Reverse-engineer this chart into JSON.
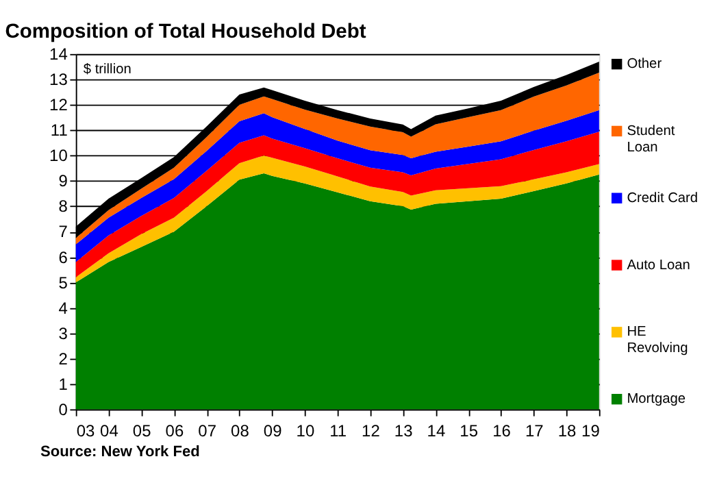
{
  "chart_data": {
    "type": "area",
    "stacked": true,
    "title": "Composition of Total Household Debt",
    "ylabel": "$ trillion",
    "annotations": [
      "Source: New York Fed"
    ],
    "x": [
      2003,
      2004,
      2005,
      2006,
      2007,
      2008,
      2008.75,
      2009,
      2010,
      2011,
      2012,
      2013,
      2013.25,
      2014,
      2015,
      2016,
      2017,
      2018,
      2019
    ],
    "series": [
      {
        "name": "Mortgage",
        "color": "#008000",
        "values": [
          5.0,
          5.8,
          6.4,
          7.0,
          8.0,
          9.05,
          9.3,
          9.2,
          8.9,
          8.55,
          8.2,
          8.0,
          7.87,
          8.1,
          8.2,
          8.3,
          8.6,
          8.9,
          9.25
        ]
      },
      {
        "name": "HE Revolving",
        "color": "#ffc000",
        "values": [
          0.2,
          0.35,
          0.5,
          0.55,
          0.6,
          0.65,
          0.7,
          0.71,
          0.67,
          0.63,
          0.58,
          0.56,
          0.55,
          0.53,
          0.51,
          0.49,
          0.46,
          0.44,
          0.41
        ]
      },
      {
        "name": "Auto Loan",
        "color": "#ff0000",
        "values": [
          0.6,
          0.7,
          0.72,
          0.78,
          0.8,
          0.8,
          0.8,
          0.76,
          0.72,
          0.71,
          0.74,
          0.78,
          0.8,
          0.86,
          0.96,
          1.06,
          1.16,
          1.22,
          1.28
        ]
      },
      {
        "name": "Credit Card",
        "color": "#0000ff",
        "values": [
          0.7,
          0.7,
          0.71,
          0.74,
          0.78,
          0.85,
          0.87,
          0.84,
          0.76,
          0.7,
          0.69,
          0.68,
          0.67,
          0.66,
          0.68,
          0.71,
          0.76,
          0.81,
          0.85
        ]
      },
      {
        "name": "Student Loan",
        "color": "#ff6600",
        "values": [
          0.25,
          0.3,
          0.36,
          0.45,
          0.55,
          0.65,
          0.66,
          0.72,
          0.76,
          0.87,
          0.93,
          0.9,
          0.85,
          1.08,
          1.16,
          1.23,
          1.34,
          1.39,
          1.48
        ]
      },
      {
        "name": "Other",
        "color": "#000000",
        "values": [
          0.45,
          0.45,
          0.42,
          0.42,
          0.42,
          0.4,
          0.35,
          0.35,
          0.35,
          0.33,
          0.32,
          0.3,
          0.3,
          0.34,
          0.35,
          0.37,
          0.38,
          0.41,
          0.43
        ]
      }
    ],
    "xlim": [
      2003,
      2019
    ],
    "xticks": [
      {
        "value": 2003,
        "label": "03"
      },
      {
        "value": 2004,
        "label": "04"
      },
      {
        "value": 2005,
        "label": "05"
      },
      {
        "value": 2006,
        "label": "06"
      },
      {
        "value": 2007,
        "label": "07"
      },
      {
        "value": 2008,
        "label": "08"
      },
      {
        "value": 2009,
        "label": "09"
      },
      {
        "value": 2010,
        "label": "10"
      },
      {
        "value": 2011,
        "label": "11"
      },
      {
        "value": 2012,
        "label": "12"
      },
      {
        "value": 2013,
        "label": "13"
      },
      {
        "value": 2014,
        "label": "14"
      },
      {
        "value": 2015,
        "label": "15"
      },
      {
        "value": 2016,
        "label": "16"
      },
      {
        "value": 2017,
        "label": "17"
      },
      {
        "value": 2018,
        "label": "18"
      },
      {
        "value": 2019,
        "label": "19"
      }
    ],
    "ylim": [
      0,
      14
    ],
    "yticks": [
      0,
      1,
      2,
      3,
      4,
      5,
      6,
      7,
      8,
      9,
      10,
      11,
      12,
      13,
      14
    ],
    "grid": "y",
    "legend": "right"
  }
}
